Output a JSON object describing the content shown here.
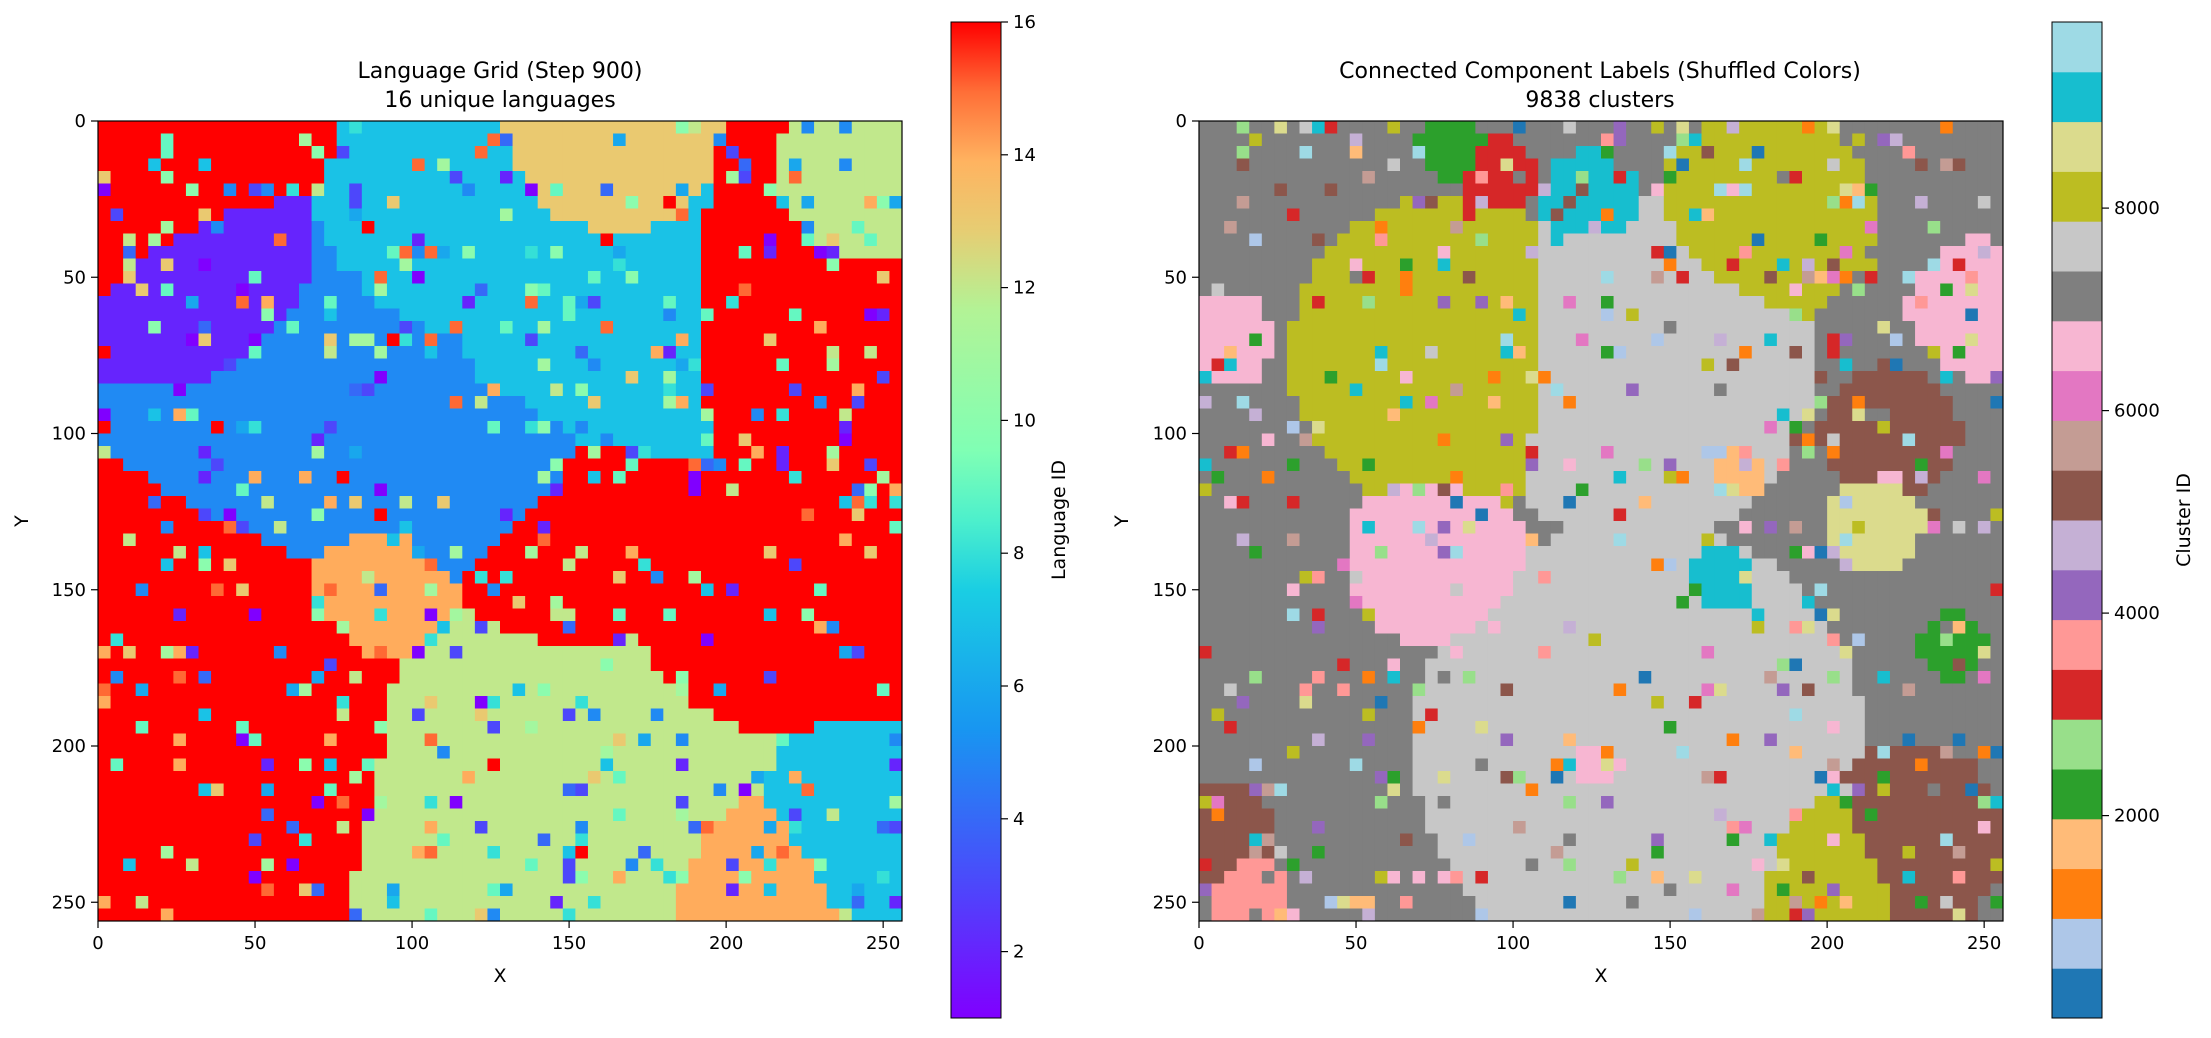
{
  "chart_data": [
    {
      "type": "heatmap",
      "title": "Language Grid (Step 900)",
      "subtitle": "16 unique languages",
      "xlabel": "X",
      "ylabel": "Y",
      "xlim": [
        0,
        256
      ],
      "ylim": [
        256,
        0
      ],
      "xticks": [
        0,
        50,
        100,
        150,
        200,
        250
      ],
      "yticks": [
        0,
        50,
        100,
        150,
        200,
        250
      ],
      "colorbar": {
        "label": "Language ID",
        "colormap": "rainbow",
        "range": [
          1,
          16
        ],
        "ticks": [
          2,
          4,
          6,
          8,
          10,
          12,
          14,
          16
        ]
      },
      "regions": [
        {
          "value": 16,
          "desc": "top-left corner",
          "x": 18,
          "y": 12,
          "r": 28
        },
        {
          "value": 2,
          "desc": "violet patch",
          "x": 38,
          "y": 52,
          "r": 22
        },
        {
          "value": 5,
          "desc": "blue band",
          "x": 85,
          "y": 95,
          "r": 38
        },
        {
          "value": 5,
          "desc": "blue band",
          "x": 120,
          "y": 112,
          "r": 28
        },
        {
          "value": 7,
          "desc": "cyan-green center top",
          "x": 150,
          "y": 60,
          "r": 35
        },
        {
          "value": 7,
          "desc": "cyan-green",
          "x": 110,
          "y": 45,
          "r": 25
        },
        {
          "value": 13,
          "desc": "orange-beige top center",
          "x": 160,
          "y": 20,
          "r": 20
        },
        {
          "value": 16,
          "desc": "right red",
          "x": 228,
          "y": 60,
          "r": 30
        },
        {
          "value": 16,
          "desc": "right red lower",
          "x": 240,
          "y": 150,
          "r": 30
        },
        {
          "value": 16,
          "desc": "left red big",
          "x": 40,
          "y": 190,
          "r": 42
        },
        {
          "value": 16,
          "desc": "center red",
          "x": 150,
          "y": 140,
          "r": 28
        },
        {
          "value": 16,
          "desc": "right-center red",
          "x": 200,
          "y": 160,
          "r": 25
        },
        {
          "value": 12,
          "desc": "beige bottom center",
          "x": 145,
          "y": 210,
          "r": 45
        },
        {
          "value": 12,
          "desc": "beige upper right",
          "x": 240,
          "y": 30,
          "r": 18
        },
        {
          "value": 14,
          "desc": "orange bottom right",
          "x": 210,
          "y": 245,
          "r": 20
        },
        {
          "value": 7,
          "desc": "green-cyan bottom right",
          "x": 242,
          "y": 225,
          "r": 22
        },
        {
          "value": 14,
          "desc": "orange mid",
          "x": 90,
          "y": 150,
          "r": 18
        }
      ]
    },
    {
      "type": "heatmap",
      "title": "Connected Component Labels (Shuffled Colors)",
      "subtitle": "9838 clusters",
      "xlabel": "X",
      "ylabel": "Y",
      "xlim": [
        0,
        256
      ],
      "ylim": [
        256,
        0
      ],
      "xticks": [
        0,
        50,
        100,
        150,
        200,
        250
      ],
      "yticks": [
        0,
        50,
        100,
        150,
        200,
        250
      ],
      "colorbar": {
        "label": "Cluster ID",
        "colormap": "tab20",
        "range": [
          1,
          9838
        ],
        "ticks": [
          2000,
          4000,
          6000,
          8000
        ]
      },
      "palette": [
        "#1f77b4",
        "#aec7e8",
        "#ff7f0e",
        "#ffbb78",
        "#2ca02c",
        "#98df8a",
        "#d62728",
        "#ff9896",
        "#9467bd",
        "#c5b0d5",
        "#8c564b",
        "#c49c94",
        "#e377c2",
        "#f7b6d2",
        "#7f7f7f",
        "#c7c7c7",
        "#bcbd22",
        "#dbdb8d",
        "#17becf",
        "#9edae5"
      ],
      "regions": [
        {
          "value": 16,
          "desc": "olive cluster",
          "x": 80,
          "y": 75,
          "r": 32
        },
        {
          "value": 16,
          "desc": "olive cluster",
          "x": 180,
          "y": 30,
          "r": 22
        },
        {
          "value": 16,
          "desc": "olive cluster",
          "x": 205,
          "y": 240,
          "r": 18
        },
        {
          "value": 15,
          "desc": "light grey cluster",
          "x": 140,
          "y": 80,
          "r": 35
        },
        {
          "value": 15,
          "desc": "light grey cluster",
          "x": 140,
          "y": 200,
          "r": 45
        },
        {
          "value": 13,
          "desc": "pink cluster",
          "x": 75,
          "y": 140,
          "r": 18
        },
        {
          "value": 13,
          "desc": "pink cluster",
          "x": 130,
          "y": 205,
          "r": 22
        },
        {
          "value": 13,
          "desc": "pink cluster",
          "x": 248,
          "y": 60,
          "r": 14
        },
        {
          "value": 13,
          "desc": "pink cluster",
          "x": 8,
          "y": 70,
          "r": 10
        },
        {
          "value": 10,
          "desc": "brown cluster",
          "x": 220,
          "y": 100,
          "r": 14
        },
        {
          "value": 10,
          "desc": "brown cluster",
          "x": 225,
          "y": 230,
          "r": 20
        },
        {
          "value": 10,
          "desc": "brown cluster",
          "x": 5,
          "y": 230,
          "r": 12
        },
        {
          "value": 18,
          "desc": "cyan cluster",
          "x": 125,
          "y": 25,
          "r": 10
        },
        {
          "value": 18,
          "desc": "cyan cluster",
          "x": 166,
          "y": 148,
          "r": 8
        },
        {
          "value": 6,
          "desc": "red cluster",
          "x": 95,
          "y": 18,
          "r": 8
        },
        {
          "value": 4,
          "desc": "green cluster",
          "x": 80,
          "y": 8,
          "r": 7
        },
        {
          "value": 4,
          "desc": "green cluster",
          "x": 240,
          "y": 168,
          "r": 7
        },
        {
          "value": 17,
          "desc": "khaki cluster",
          "x": 215,
          "y": 128,
          "r": 10
        },
        {
          "value": 3,
          "desc": "peach cluster",
          "x": 172,
          "y": 112,
          "r": 6
        },
        {
          "value": 7,
          "desc": "salmon cluster",
          "x": 15,
          "y": 245,
          "r": 8
        }
      ]
    }
  ]
}
